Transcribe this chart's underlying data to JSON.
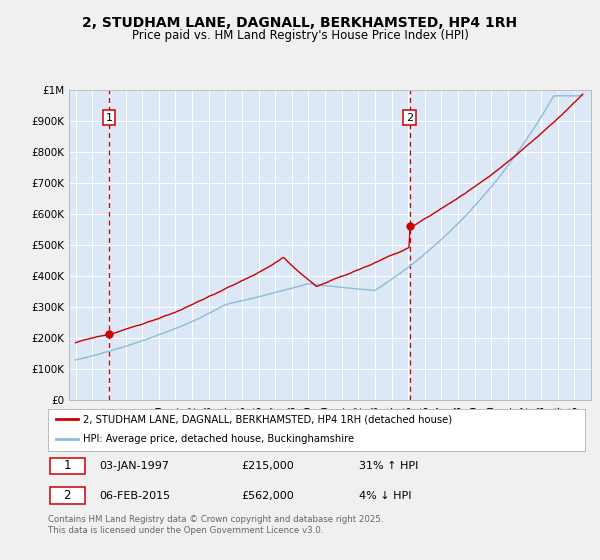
{
  "title": "2, STUDHAM LANE, DAGNALL, BERKHAMSTED, HP4 1RH",
  "subtitle": "Price paid vs. HM Land Registry's House Price Index (HPI)",
  "red_label": "2, STUDHAM LANE, DAGNALL, BERKHAMSTED, HP4 1RH (detached house)",
  "blue_label": "HPI: Average price, detached house, Buckinghamshire",
  "annotation1_date": "03-JAN-1997",
  "annotation1_price": "£215,000",
  "annotation1_hpi": "31% ↑ HPI",
  "annotation2_date": "06-FEB-2015",
  "annotation2_price": "£562,000",
  "annotation2_hpi": "4% ↓ HPI",
  "footer": "Contains HM Land Registry data © Crown copyright and database right 2025.\nThis data is licensed under the Open Government Licence v3.0.",
  "ylim": [
    0,
    1000000
  ],
  "yticks": [
    0,
    100000,
    200000,
    300000,
    400000,
    500000,
    600000,
    700000,
    800000,
    900000,
    1000000
  ],
  "ytick_labels": [
    "£0",
    "£100K",
    "£200K",
    "£300K",
    "£400K",
    "£500K",
    "£600K",
    "£700K",
    "£800K",
    "£900K",
    "£1M"
  ],
  "fig_bg_color": "#f0f0f0",
  "plot_bg_color": "#dce8f5",
  "red_color": "#cc0000",
  "blue_color": "#8bbdd9",
  "vline_color": "#cc0000",
  "sale1_year": 1997.01,
  "sale1_price": 215000,
  "sale2_year": 2015.09,
  "sale2_price": 562000,
  "title_fontsize": 10,
  "subtitle_fontsize": 8.5,
  "xlim_left": 1994.6,
  "xlim_right": 2026.0
}
